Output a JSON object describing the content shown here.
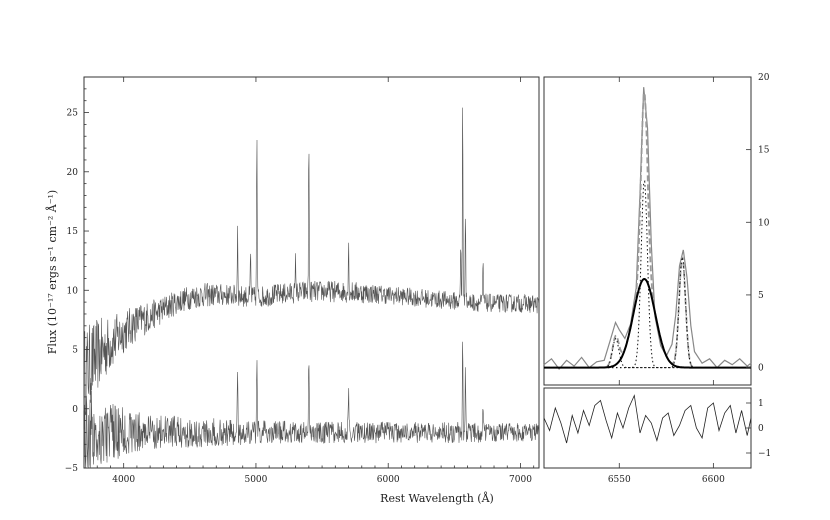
{
  "chart_data": [
    {
      "type": "line",
      "panel": "full-spectrum",
      "title": "",
      "xlabel": "Rest Wavelength (Å)",
      "ylabel": "Flux (10⁻¹⁷ ergs s⁻¹ cm⁻² Å⁻¹)",
      "xlim": [
        3700,
        7140
      ],
      "ylim": [
        -5,
        28
      ],
      "x_ticks": [
        4000,
        5000,
        6000,
        7000
      ],
      "y_ticks": [
        -5,
        0,
        5,
        10,
        15,
        20,
        25
      ],
      "tick_labels_x": [
        "4000",
        "5000",
        "6000",
        "7000"
      ],
      "tick_labels_y": [
        "−5",
        "0",
        "5",
        "10",
        "15",
        "20",
        "25"
      ],
      "grid": false,
      "series": [
        {
          "role": "spectrum",
          "color": "#555555",
          "x": [
            3700,
            3800,
            3900,
            4000,
            4100,
            4200,
            4300,
            4400,
            4500,
            4600,
            4800,
            5000,
            5200,
            5400,
            5600,
            5800,
            6000,
            6200,
            6400,
            6600,
            6800,
            7000,
            7140
          ],
          "y": [
            3.0,
            4.5,
            5.5,
            6.5,
            7.3,
            7.8,
            8.4,
            9.0,
            9.4,
            9.6,
            9.6,
            9.4,
            9.7,
            9.9,
            9.9,
            9.8,
            9.6,
            9.4,
            9.2,
            9.0,
            8.9,
            8.9,
            8.8
          ],
          "noise": [
            3.0,
            2.4,
            1.8,
            1.4,
            1.2,
            1.0,
            0.9,
            0.8,
            0.8,
            0.8,
            0.7,
            0.7,
            0.7,
            0.7,
            0.7,
            0.7,
            0.6,
            0.6,
            0.6,
            0.6,
            0.6,
            0.6,
            0.6
          ],
          "lines": [
            {
              "x": 4861,
              "peak": 15.3
            },
            {
              "x": 4959,
              "peak": 13.0
            },
            {
              "x": 5007,
              "peak": 23.4
            },
            {
              "x": 5400,
              "peak": 23.0
            },
            {
              "x": 5300,
              "peak": 12.6
            },
            {
              "x": 5700,
              "peak": 13.8
            },
            {
              "x": 6548,
              "peak": 14.0
            },
            {
              "x": 6563,
              "peak": 26.9
            },
            {
              "x": 6584,
              "peak": 17.4
            },
            {
              "x": 6717,
              "peak": 12.2
            }
          ]
        },
        {
          "role": "residual",
          "color": "#555555",
          "x": [
            3700,
            3800,
            3900,
            4000,
            4200,
            4500,
            5000,
            5500,
            6000,
            6500,
            7000,
            7140
          ],
          "y": [
            -2.0,
            -2.0,
            -2.0,
            -2.0,
            -2.0,
            -2.0,
            -2.0,
            -2.0,
            -2.0,
            -2.0,
            -2.0,
            -2.0
          ],
          "noise": [
            3.0,
            2.6,
            2.0,
            1.6,
            1.2,
            1.0,
            0.8,
            0.7,
            0.7,
            0.7,
            0.6,
            0.6
          ],
          "lines": [
            {
              "x": 4861,
              "peak": 2.8
            },
            {
              "x": 5007,
              "peak": 4.0
            },
            {
              "x": 5400,
              "peak": 4.4
            },
            {
              "x": 5700,
              "peak": 1.9
            },
            {
              "x": 6563,
              "peak": 6.8
            },
            {
              "x": 6584,
              "peak": 3.0
            },
            {
              "x": 6717,
              "peak": 0.2
            }
          ]
        }
      ]
    },
    {
      "type": "line",
      "panel": "zoom-halpha",
      "xlim": [
        6510,
        6620
      ],
      "ylim": [
        -1.2,
        20
      ],
      "x_ticks": [
        6550,
        6600
      ],
      "y_ticks": [
        0,
        5,
        10,
        15,
        20
      ],
      "tick_labels_x": [
        "6550",
        "6600"
      ],
      "tick_labels_y": [
        "0",
        "5",
        "10",
        "15",
        "20"
      ],
      "grid": false,
      "series": [
        {
          "name": "",
          "role": "data",
          "style": "solid-grey",
          "x": [
            6510,
            6514,
            6518,
            6522,
            6526,
            6530,
            6534,
            6538,
            6542,
            6545,
            6548,
            6550,
            6553,
            6556,
            6559,
            6561,
            6563,
            6565,
            6567,
            6569,
            6572,
            6575,
            6578,
            6580,
            6582,
            6584,
            6586,
            6588,
            6590,
            6594,
            6598,
            6602,
            6606,
            6610,
            6614,
            6618,
            6620
          ],
          "y": [
            0.2,
            0.6,
            -0.1,
            0.5,
            0.1,
            0.7,
            0.0,
            0.4,
            0.5,
            1.8,
            3.1,
            2.6,
            2.0,
            3.0,
            5.5,
            12.0,
            19.3,
            16.5,
            8.5,
            3.5,
            1.5,
            0.8,
            1.6,
            3.6,
            7.0,
            8.1,
            6.2,
            2.9,
            1.1,
            0.3,
            0.6,
            0.0,
            0.5,
            0.2,
            0.6,
            0.1,
            0.3
          ]
        },
        {
          "name": "",
          "role": "total-fit",
          "style": "dashed-grey",
          "components": [
            {
              "center": 6548.1,
              "amp": 2.0,
              "sigma": 1.7
            },
            {
              "center": 6563.3,
              "amp": 12.9,
              "sigma": 1.7
            },
            {
              "center": 6583.5,
              "amp": 7.6,
              "sigma": 1.7
            },
            {
              "center": 6563.3,
              "amp": 6.1,
              "sigma": 5.8
            }
          ]
        },
        {
          "name": "",
          "role": "broad-component",
          "style": "solid-black-thick",
          "center": 6563.3,
          "amp": 6.1,
          "sigma": 5.8
        },
        {
          "name": "",
          "role": "narrow-components",
          "style": "dotted-black",
          "components": [
            {
              "center": 6548.1,
              "amp": 2.0,
              "sigma": 1.7
            },
            {
              "center": 6563.3,
              "amp": 12.9,
              "sigma": 1.7
            },
            {
              "center": 6583.5,
              "amp": 7.6,
              "sigma": 1.7
            }
          ]
        }
      ]
    },
    {
      "type": "line",
      "panel": "zoom-residual",
      "xlim": [
        6510,
        6620
      ],
      "ylim": [
        -1.6,
        1.6
      ],
      "y_ticks": [
        -1,
        0,
        1
      ],
      "tick_labels_y": [
        "−1",
        "0",
        "1"
      ],
      "grid": false,
      "series": [
        {
          "role": "residual",
          "x": [
            6510,
            6513,
            6516,
            6519,
            6522,
            6525,
            6528,
            6531,
            6534,
            6537,
            6540,
            6543,
            6546,
            6549,
            6552,
            6555,
            6558,
            6561,
            6564,
            6567,
            6570,
            6573,
            6576,
            6579,
            6582,
            6585,
            6588,
            6591,
            6594,
            6597,
            6600,
            6603,
            6606,
            6609,
            6612,
            6615,
            6618,
            6620
          ],
          "y": [
            0.4,
            -0.1,
            0.8,
            0.2,
            -0.6,
            0.5,
            -0.2,
            0.7,
            0.1,
            0.9,
            1.1,
            0.3,
            -0.4,
            0.6,
            0.0,
            0.8,
            1.3,
            -0.2,
            0.5,
            0.2,
            -0.5,
            0.4,
            0.6,
            -0.3,
            0.1,
            0.7,
            0.9,
            0.0,
            -0.4,
            0.8,
            1.0,
            -0.1,
            0.6,
            0.9,
            -0.2,
            0.7,
            -0.3,
            0.4
          ]
        }
      ]
    }
  ]
}
